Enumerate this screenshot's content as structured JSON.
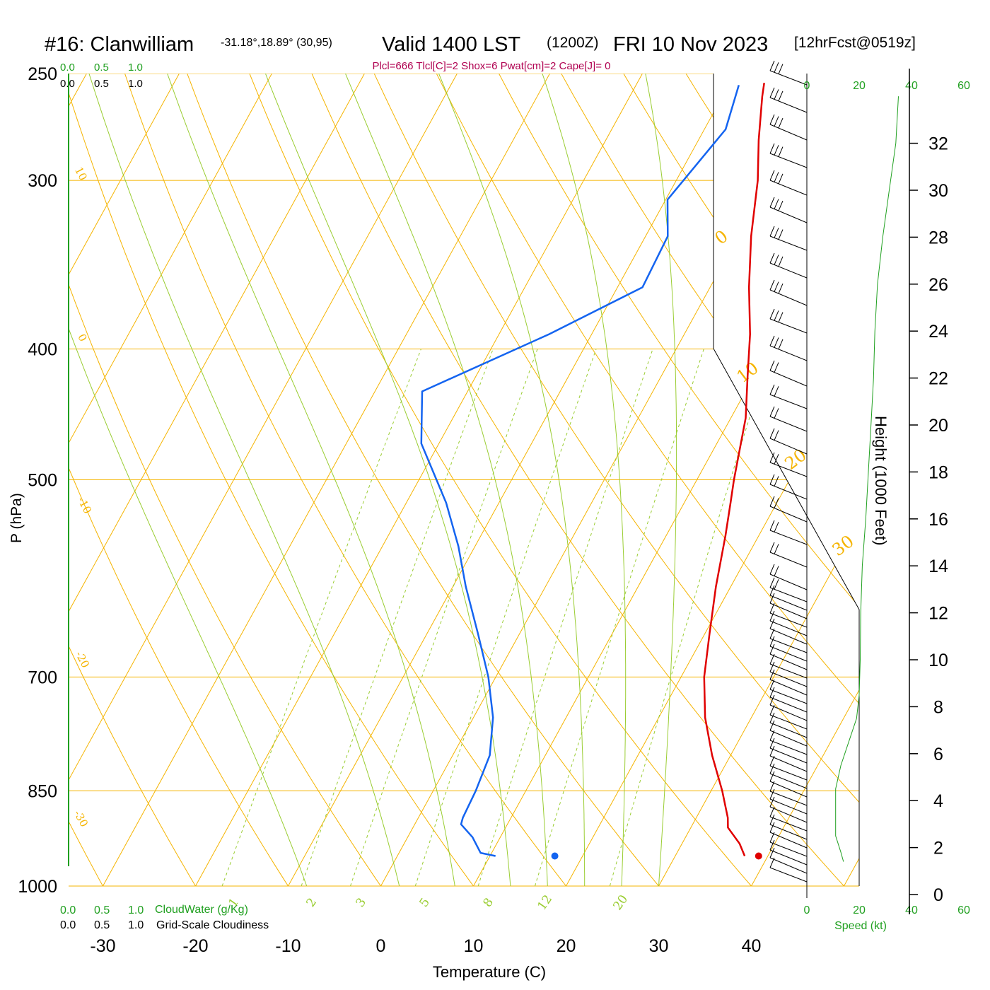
{
  "header": {
    "station": "#16: Clanwilliam",
    "coords": "-31.18°,18.89° (30,95)",
    "valid": "Valid 1400 LST",
    "utc": "(1200Z)",
    "date": "FRI 10 Nov 2023",
    "forecast": "[12hrFcst@0519z]",
    "indices": "Plcl=666 Tlcl[C]=2 Shox=6 Pwat[cm]=2 Cape[J]= 0"
  },
  "labels": {
    "cloudwater_title": "CloudWater (g/Kg)",
    "cloudiness_title": "Grid-Scale Cloudiness",
    "scale_ticks": [
      "0.0",
      "0.5",
      "1.0"
    ],
    "speed_title": "Speed (kt)",
    "height_title": "Height (1000 Feet)",
    "pressure_title": "P (hPa)",
    "temperature_title": "Temperature (C)"
  },
  "colors": {
    "isotherm": "#f5b400",
    "dry_adiabat": "#9acd32",
    "moist_adiabat": "#9acd32",
    "mixing_ratio": "#9acd32",
    "temperature": "#e00000",
    "dewpoint": "#1464f0",
    "height": "#20a020",
    "indices": "#b00050"
  },
  "chart_data": {
    "type": "skew-t",
    "pressure_axis": {
      "ticks": [
        250,
        300,
        400,
        500,
        700,
        850,
        1000
      ],
      "range": [
        250,
        1000
      ],
      "scale": "log"
    },
    "temperature_axis": {
      "ticks": [
        -30,
        -20,
        -10,
        0,
        10,
        20,
        30,
        40
      ],
      "range": [
        -30,
        45
      ]
    },
    "isotherm_labels": [
      "10",
      "0",
      "-10",
      "-20",
      "-30",
      "0",
      "10",
      "20",
      "30"
    ],
    "mixing_ratio_labels": [
      "1",
      "2",
      "3",
      "5",
      "8",
      "12",
      "20"
    ],
    "temperature_profile": [
      [
        950,
        37.5
      ],
      [
        930,
        36.2
      ],
      [
        905,
        34.0
      ],
      [
        890,
        33.4
      ],
      [
        850,
        31.2
      ],
      [
        800,
        28.0
      ],
      [
        750,
        25.0
      ],
      [
        700,
        22.5
      ],
      [
        650,
        20.5
      ],
      [
        600,
        18.4
      ],
      [
        550,
        16.4
      ],
      [
        520,
        15.0
      ],
      [
        500,
        14.0
      ],
      [
        450,
        11.6
      ],
      [
        420,
        9.4
      ],
      [
        390,
        7.1
      ],
      [
        360,
        4.2
      ],
      [
        330,
        1.4
      ],
      [
        300,
        -1.2
      ],
      [
        280,
        -3.5
      ],
      [
        260,
        -5.7
      ],
      [
        254,
        -6.3
      ]
    ],
    "dewpoint_profile": [
      [
        950,
        10.6
      ],
      [
        945,
        8.8
      ],
      [
        920,
        7.0
      ],
      [
        900,
        5.0
      ],
      [
        890,
        4.8
      ],
      [
        850,
        4.6
      ],
      [
        800,
        4.0
      ],
      [
        750,
        2.1
      ],
      [
        700,
        -0.8
      ],
      [
        650,
        -4.5
      ],
      [
        600,
        -8.6
      ],
      [
        560,
        -11.8
      ],
      [
        520,
        -15.7
      ],
      [
        470,
        -21.9
      ],
      [
        430,
        -24.9
      ],
      [
        390,
        -14.6
      ],
      [
        360,
        -7.3
      ],
      [
        330,
        -7.6
      ],
      [
        310,
        -9.8
      ],
      [
        275,
        -7.7
      ],
      [
        255,
        -8.9
      ]
    ],
    "surface_temperature": 39,
    "surface_dewpoint": 17,
    "height_axis": {
      "label": "Height (1000 Feet)",
      "ticks": [
        0,
        2,
        4,
        6,
        8,
        10,
        12,
        14,
        16,
        18,
        20,
        22,
        24,
        26,
        28,
        30,
        32
      ]
    },
    "speed_axis": {
      "label": "Speed (kt)",
      "ticks": [
        0,
        20,
        40,
        60
      ]
    },
    "wind_speed_profile": [
      [
        1.4,
        14
      ],
      [
        1.8,
        13
      ],
      [
        2.5,
        11
      ],
      [
        3.5,
        11
      ],
      [
        4.5,
        11
      ],
      [
        5.5,
        13
      ],
      [
        6.5,
        16
      ],
      [
        7.5,
        19
      ],
      [
        8.5,
        20
      ],
      [
        10,
        20.4
      ],
      [
        12,
        20.6
      ],
      [
        14,
        21.2
      ],
      [
        16,
        22.5
      ],
      [
        18,
        23.5
      ],
      [
        20,
        24.5
      ],
      [
        22,
        25.5
      ],
      [
        24,
        26
      ],
      [
        26,
        27
      ],
      [
        28,
        29
      ],
      [
        30,
        31.5
      ],
      [
        32,
        34
      ],
      [
        34,
        35
      ]
    ]
  }
}
